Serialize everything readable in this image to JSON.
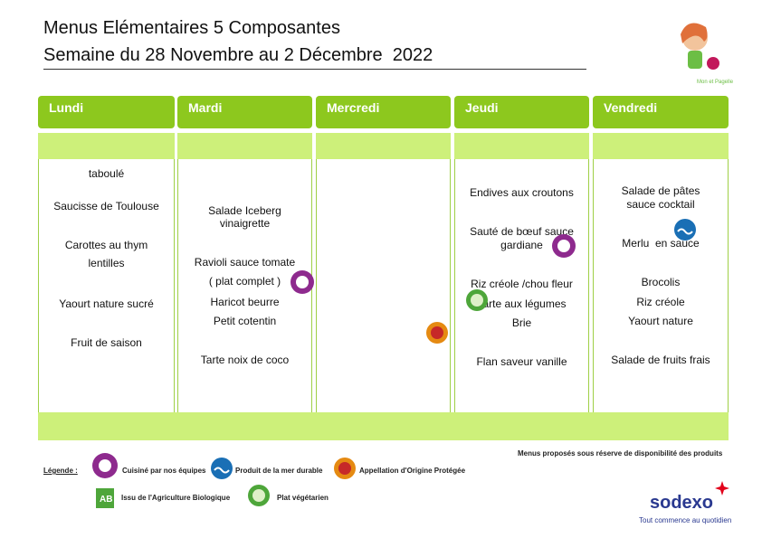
{
  "header": {
    "title": "Menus Elémentaires 5 Composantes",
    "subtitle": "Semaine du 28 Novembre au 2 Décembre  2022"
  },
  "days": [
    {
      "name": "Lundi",
      "items": [
        "taboulé",
        "Saucisse de Toulouse",
        "Carottes au thym",
        "lentilles",
        "Yaourt nature sucré",
        "Fruit de saison"
      ]
    },
    {
      "name": "Mardi",
      "items": [
        "Salade Iceberg",
        "vinaigrette",
        "Ravioli sauce tomate",
        "( plat complet )",
        "Haricot beurre",
        "Petit cotentin",
        "Tarte noix de coco"
      ]
    },
    {
      "name": "Mercredi",
      "items": []
    },
    {
      "name": "Jeudi",
      "items": [
        "Endives aux croutons",
        "Sauté de bœuf sauce",
        "gardiane",
        "Riz créole /chou fleur",
        "Tarte aux légumes",
        "Brie",
        "Flan saveur vanille"
      ]
    },
    {
      "name": "Vendredi",
      "items": [
        "Salade de pâtes",
        "sauce cocktail",
        "Merlu  en sauce",
        "Brocolis",
        "Riz créole",
        "Yaourt nature",
        "Salade de fruits frais"
      ]
    }
  ],
  "note": "Menus proposés sous réserve de disponibilité des produits",
  "legend": {
    "title": "Légende :",
    "items": [
      "Cuisiné par nos équipes",
      "Produit de la mer durable",
      "Appellation d'Origine Protégée",
      "Issu de l'Agriculture Biologique",
      "Plat végétarien"
    ]
  },
  "brand": {
    "name": "sodexo",
    "tagline": "Tout commence au quotidien"
  }
}
